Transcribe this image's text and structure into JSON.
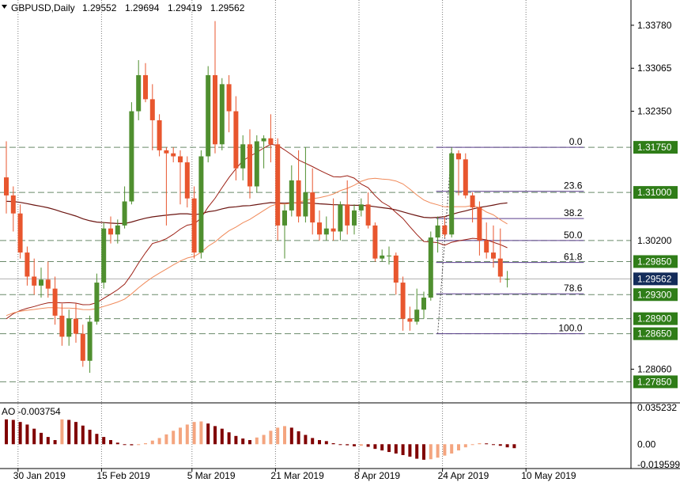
{
  "chart_data": {
    "type": "candlestick",
    "header": {
      "symbol": "GBPUSD,Daily",
      "open": "1.29552",
      "high": "1.29694",
      "low": "1.29419",
      "close": "1.29562"
    },
    "y_ticks": [
      "1.33780",
      "1.33065",
      "1.32350",
      "1.28060"
    ],
    "y_range": [
      1.275,
      1.342
    ],
    "x_ticks": [
      {
        "label": "30 Jan 2019",
        "index": 1
      },
      {
        "label": "15 Feb 2019",
        "index": 13
      },
      {
        "label": "5 Mar 2019",
        "index": 26
      },
      {
        "label": "21 Mar 2019",
        "index": 38
      },
      {
        "label": "8 Apr 2019",
        "index": 50
      },
      {
        "label": "24 Apr 2019",
        "index": 62
      },
      {
        "label": "10 May 2019",
        "index": 74
      }
    ],
    "price_labels": [
      {
        "value": 1.3175,
        "text": "1.31750",
        "kind": "green"
      },
      {
        "value": 1.31,
        "text": "1.31000",
        "kind": "green"
      },
      {
        "value": 1.302,
        "text": "1.30200",
        "kind": "plain"
      },
      {
        "value": 1.2985,
        "text": "1.29850",
        "kind": "green"
      },
      {
        "value": 1.29562,
        "text": "1.29562",
        "kind": "current"
      },
      {
        "value": 1.293,
        "text": "1.29300",
        "kind": "green"
      },
      {
        "value": 1.289,
        "text": "1.28900",
        "kind": "green"
      },
      {
        "value": 1.2865,
        "text": "1.28650",
        "kind": "green"
      },
      {
        "value": 1.2785,
        "text": "1.27850",
        "kind": "green"
      }
    ],
    "horizontal_levels": [
      1.3175,
      1.31,
      1.302,
      1.2985,
      1.293,
      1.289,
      1.2865,
      1.2785
    ],
    "fibonacci": {
      "high": 1.3175,
      "low": 1.2865,
      "levels": [
        {
          "label": "0.0",
          "ratio": 0.0
        },
        {
          "label": "23.6",
          "ratio": 0.236
        },
        {
          "label": "38.2",
          "ratio": 0.382
        },
        {
          "label": "50.0",
          "ratio": 0.5
        },
        {
          "label": "61.8",
          "ratio": 0.618
        },
        {
          "label": "78.6",
          "ratio": 0.786
        },
        {
          "label": "100.0",
          "ratio": 1.0
        }
      ],
      "start_index": 62,
      "end_index": 83
    },
    "candles": [
      {
        "o": 1.3125,
        "h": 1.3185,
        "l": 1.3065,
        "c": 1.3095
      },
      {
        "o": 1.3095,
        "h": 1.311,
        "l": 1.3035,
        "c": 1.3065
      },
      {
        "o": 1.3065,
        "h": 1.308,
        "l": 1.299,
        "c": 1.3
      },
      {
        "o": 1.3,
        "h": 1.301,
        "l": 1.2945,
        "c": 1.296
      },
      {
        "o": 1.296,
        "h": 1.299,
        "l": 1.293,
        "c": 1.2945
      },
      {
        "o": 1.2945,
        "h": 1.2975,
        "l": 1.2925,
        "c": 1.2955
      },
      {
        "o": 1.2955,
        "h": 1.2985,
        "l": 1.2925,
        "c": 1.294
      },
      {
        "o": 1.294,
        "h": 1.296,
        "l": 1.288,
        "c": 1.2895
      },
      {
        "o": 1.2895,
        "h": 1.2915,
        "l": 1.2845,
        "c": 1.286
      },
      {
        "o": 1.286,
        "h": 1.2905,
        "l": 1.2845,
        "c": 1.289
      },
      {
        "o": 1.289,
        "h": 1.2915,
        "l": 1.285,
        "c": 1.2865
      },
      {
        "o": 1.2865,
        "h": 1.288,
        "l": 1.281,
        "c": 1.282
      },
      {
        "o": 1.282,
        "h": 1.2895,
        "l": 1.28,
        "c": 1.2885
      },
      {
        "o": 1.2885,
        "h": 1.2965,
        "l": 1.288,
        "c": 1.295
      },
      {
        "o": 1.295,
        "h": 1.305,
        "l": 1.294,
        "c": 1.304
      },
      {
        "o": 1.304,
        "h": 1.306,
        "l": 1.3015,
        "c": 1.303
      },
      {
        "o": 1.303,
        "h": 1.3055,
        "l": 1.3015,
        "c": 1.3045
      },
      {
        "o": 1.3045,
        "h": 1.311,
        "l": 1.304,
        "c": 1.3085
      },
      {
        "o": 1.3085,
        "h": 1.325,
        "l": 1.308,
        "c": 1.3235
      },
      {
        "o": 1.3235,
        "h": 1.332,
        "l": 1.322,
        "c": 1.3295
      },
      {
        "o": 1.3295,
        "h": 1.3315,
        "l": 1.325,
        "c": 1.3255
      },
      {
        "o": 1.3255,
        "h": 1.328,
        "l": 1.317,
        "c": 1.322
      },
      {
        "o": 1.322,
        "h": 1.323,
        "l": 1.316,
        "c": 1.317
      },
      {
        "o": 1.317,
        "h": 1.3175,
        "l": 1.3045,
        "c": 1.3165
      },
      {
        "o": 1.3165,
        "h": 1.3175,
        "l": 1.315,
        "c": 1.316
      },
      {
        "o": 1.316,
        "h": 1.317,
        "l": 1.308,
        "c": 1.315
      },
      {
        "o": 1.315,
        "h": 1.316,
        "l": 1.3075,
        "c": 1.309
      },
      {
        "o": 1.309,
        "h": 1.311,
        "l": 1.299,
        "c": 1.3
      },
      {
        "o": 1.3,
        "h": 1.317,
        "l": 1.299,
        "c": 1.316
      },
      {
        "o": 1.316,
        "h": 1.331,
        "l": 1.315,
        "c": 1.3295
      },
      {
        "o": 1.3295,
        "h": 1.3385,
        "l": 1.3165,
        "c": 1.318
      },
      {
        "o": 1.318,
        "h": 1.329,
        "l": 1.317,
        "c": 1.328
      },
      {
        "o": 1.328,
        "h": 1.3295,
        "l": 1.32,
        "c": 1.3235
      },
      {
        "o": 1.3235,
        "h": 1.326,
        "l": 1.312,
        "c": 1.314
      },
      {
        "o": 1.314,
        "h": 1.3195,
        "l": 1.312,
        "c": 1.318
      },
      {
        "o": 1.318,
        "h": 1.3205,
        "l": 1.309,
        "c": 1.311
      },
      {
        "o": 1.311,
        "h": 1.3195,
        "l": 1.31,
        "c": 1.3185
      },
      {
        "o": 1.3185,
        "h": 1.3195,
        "l": 1.314,
        "c": 1.319
      },
      {
        "o": 1.319,
        "h": 1.323,
        "l": 1.315,
        "c": 1.318
      },
      {
        "o": 1.318,
        "h": 1.319,
        "l": 1.302,
        "c": 1.3045
      },
      {
        "o": 1.3045,
        "h": 1.308,
        "l": 1.299,
        "c": 1.307
      },
      {
        "o": 1.307,
        "h": 1.3145,
        "l": 1.306,
        "c": 1.312
      },
      {
        "o": 1.312,
        "h": 1.317,
        "l": 1.305,
        "c": 1.306
      },
      {
        "o": 1.306,
        "h": 1.3175,
        "l": 1.305,
        "c": 1.31
      },
      {
        "o": 1.31,
        "h": 1.314,
        "l": 1.303,
        "c": 1.305
      },
      {
        "o": 1.305,
        "h": 1.307,
        "l": 1.302,
        "c": 1.303
      },
      {
        "o": 1.303,
        "h": 1.306,
        "l": 1.302,
        "c": 1.304
      },
      {
        "o": 1.304,
        "h": 1.309,
        "l": 1.302,
        "c": 1.3035
      },
      {
        "o": 1.3035,
        "h": 1.3085,
        "l": 1.302,
        "c": 1.308
      },
      {
        "o": 1.308,
        "h": 1.312,
        "l": 1.303,
        "c": 1.3045
      },
      {
        "o": 1.3045,
        "h": 1.308,
        "l": 1.303,
        "c": 1.307
      },
      {
        "o": 1.307,
        "h": 1.309,
        "l": 1.306,
        "c": 1.308
      },
      {
        "o": 1.308,
        "h": 1.31,
        "l": 1.304,
        "c": 1.3045
      },
      {
        "o": 1.3045,
        "h": 1.305,
        "l": 1.2985,
        "c": 1.299
      },
      {
        "o": 1.299,
        "h": 1.3005,
        "l": 1.2985,
        "c": 1.2995
      },
      {
        "o": 1.2995,
        "h": 1.301,
        "l": 1.298,
        "c": 1.2995
      },
      {
        "o": 1.2995,
        "h": 1.3,
        "l": 1.293,
        "c": 1.295
      },
      {
        "o": 1.295,
        "h": 1.296,
        "l": 1.287,
        "c": 1.289
      },
      {
        "o": 1.289,
        "h": 1.291,
        "l": 1.287,
        "c": 1.2885
      },
      {
        "o": 1.2885,
        "h": 1.294,
        "l": 1.288,
        "c": 1.2905
      },
      {
        "o": 1.2905,
        "h": 1.2935,
        "l": 1.289,
        "c": 1.2925
      },
      {
        "o": 1.2925,
        "h": 1.3035,
        "l": 1.292,
        "c": 1.3025
      },
      {
        "o": 1.3025,
        "h": 1.306,
        "l": 1.3,
        "c": 1.3045
      },
      {
        "o": 1.3045,
        "h": 1.306,
        "l": 1.3025,
        "c": 1.303
      },
      {
        "o": 1.303,
        "h": 1.3175,
        "l": 1.3025,
        "c": 1.3165
      },
      {
        "o": 1.3165,
        "h": 1.317,
        "l": 1.3095,
        "c": 1.3155
      },
      {
        "o": 1.3155,
        "h": 1.3165,
        "l": 1.309,
        "c": 1.3095
      },
      {
        "o": 1.3095,
        "h": 1.31,
        "l": 1.305,
        "c": 1.3075
      },
      {
        "o": 1.3075,
        "h": 1.3085,
        "l": 1.2995,
        "c": 1.302
      },
      {
        "o": 1.302,
        "h": 1.305,
        "l": 1.299,
        "c": 1.3
      },
      {
        "o": 1.3,
        "h": 1.3045,
        "l": 1.2975,
        "c": 1.299
      },
      {
        "o": 1.299,
        "h": 1.304,
        "l": 1.295,
        "c": 1.296
      },
      {
        "o": 1.29552,
        "h": 1.29694,
        "l": 1.29419,
        "c": 1.29562
      }
    ],
    "ao": {
      "label": "AO -0.003754",
      "y_ticks": [
        "0.035232",
        "0.00",
        "-0.019599"
      ],
      "y_range": [
        -0.0235,
        0.0392
      ],
      "values": [
        0.024,
        0.0235,
        0.0215,
        0.018,
        0.014,
        0.01,
        0.007,
        0.004,
        0.0015,
        -0.0005,
        -0.001,
        -0.0008,
        0.001,
        0.0035,
        0.006,
        0.0095,
        0.013,
        0.016,
        0.019,
        0.0215,
        0.022,
        0.02,
        0.0175,
        0.015,
        0.0115,
        0.008,
        0.0055,
        0.004,
        0.0065,
        0.009,
        0.013,
        0.016,
        0.0175,
        0.016,
        0.0125,
        0.009,
        0.006,
        0.004,
        0.003,
        0.001,
        -0.0005,
        -0.001,
        -0.002,
        -0.0015,
        -0.0025,
        -0.0045,
        -0.006,
        -0.0075,
        -0.009,
        -0.0105,
        -0.012,
        -0.014,
        -0.015,
        -0.0145,
        -0.013,
        -0.011,
        -0.009,
        -0.006,
        -0.003,
        -0.0005,
        0.001,
        0.0008,
        -0.0005,
        -0.0015,
        -0.003,
        -0.0038
      ]
    },
    "colors": {
      "bull": "#4f8f2f",
      "bear": "#e8562e",
      "ma_slow": "#6b1410",
      "ma_mid": "#9c1f14",
      "ma_fast": "#f08a5a",
      "label_green": "#2f7d18",
      "label_current": "#142c5a",
      "ao_dark": "#800000",
      "ao_light": "#f4a57f",
      "grid": "#7a7a7a",
      "fib": "#5a3e8c"
    }
  }
}
